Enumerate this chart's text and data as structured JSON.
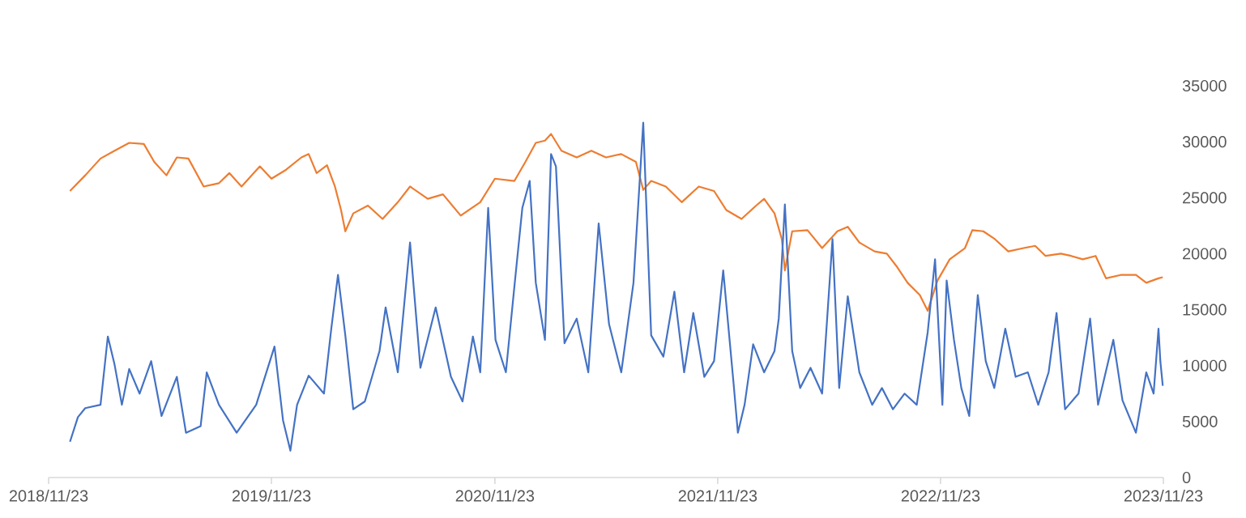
{
  "chart_data": {
    "type": "line",
    "xlim": [
      "2018-11-23",
      "2023-11-23"
    ],
    "xticks": [
      {
        "value": "2018-11-23",
        "label": "2018/11/23"
      },
      {
        "value": "2019-11-23",
        "label": "2019/11/23"
      },
      {
        "value": "2020-11-23",
        "label": "2020/11/23"
      },
      {
        "value": "2021-11-23",
        "label": "2021/11/23"
      },
      {
        "value": "2022-11-23",
        "label": "2022/11/23"
      },
      {
        "value": "2023-11-23",
        "label": "2023/11/23"
      }
    ],
    "ylim": [
      0,
      35000
    ],
    "yticks": [
      0,
      5000,
      10000,
      15000,
      20000,
      25000,
      30000,
      35000
    ],
    "series": [
      {
        "color": "#ed7d31",
        "x": [
          "2018-12-28",
          "2019-01-22",
          "2019-02-16",
          "2019-03-11",
          "2019-04-04",
          "2019-04-28",
          "2019-05-15",
          "2019-06-04",
          "2019-06-21",
          "2019-07-10",
          "2019-08-04",
          "2019-08-29",
          "2019-09-15",
          "2019-10-05",
          "2019-11-04",
          "2019-11-23",
          "2019-12-17",
          "2020-01-11",
          "2020-01-23",
          "2020-02-05",
          "2020-02-22",
          "2020-03-06",
          "2020-03-16",
          "2020-03-23",
          "2020-04-05",
          "2020-04-29",
          "2020-05-23",
          "2020-06-17",
          "2020-07-07",
          "2020-08-05",
          "2020-08-30",
          "2020-09-28",
          "2020-10-30",
          "2020-11-23",
          "2020-12-25",
          "2021-01-12",
          "2021-01-29",
          "2021-02-13",
          "2021-02-23",
          "2021-03-12",
          "2021-04-06",
          "2021-04-30",
          "2021-05-24",
          "2021-06-18",
          "2021-07-12",
          "2021-07-24",
          "2021-08-06",
          "2021-08-30",
          "2021-09-25",
          "2021-10-23",
          "2021-11-17",
          "2021-12-07",
          "2022-01-01",
          "2022-01-25",
          "2022-02-07",
          "2022-02-24",
          "2022-03-08",
          "2022-03-13",
          "2022-03-25",
          "2022-04-19",
          "2022-05-13",
          "2022-06-07",
          "2022-06-24",
          "2022-07-13",
          "2022-08-07",
          "2022-08-27",
          "2022-09-13",
          "2022-09-30",
          "2022-10-20",
          "2022-11-02",
          "2022-11-18",
          "2022-12-08",
          "2023-01-02",
          "2023-01-14",
          "2023-02-01",
          "2023-02-20",
          "2023-03-14",
          "2023-04-08",
          "2023-04-27",
          "2023-05-14",
          "2023-06-08",
          "2023-06-25",
          "2023-07-14",
          "2023-08-04",
          "2023-08-21",
          "2023-09-14",
          "2023-10-09",
          "2023-10-26",
          "2023-11-15",
          "2023-11-22"
        ],
        "values": [
          25600,
          27000,
          28500,
          29200,
          29900,
          29800,
          28200,
          27000,
          28600,
          28500,
          26000,
          26300,
          27200,
          26000,
          27800,
          26700,
          27500,
          28600,
          28900,
          27200,
          27900,
          26000,
          23900,
          22000,
          23600,
          24300,
          23100,
          24600,
          26000,
          24900,
          25300,
          23400,
          24600,
          26700,
          26500,
          28200,
          29900,
          30100,
          30700,
          29200,
          28600,
          29200,
          28600,
          28900,
          28200,
          25700,
          26500,
          26000,
          24600,
          26000,
          25600,
          23900,
          23100,
          24300,
          24900,
          23600,
          21300,
          18500,
          22000,
          22100,
          20500,
          22000,
          22400,
          21000,
          20200,
          20000,
          18800,
          17400,
          16300,
          14900,
          17600,
          19500,
          20500,
          22100,
          22000,
          21300,
          20200,
          20500,
          20700,
          19800,
          20000,
          19800,
          19500,
          19800,
          17800,
          18100,
          18100,
          17400,
          17800,
          17900
        ]
      },
      {
        "color": "#4472c4",
        "x": [
          "2018-12-28",
          "2019-01-10",
          "2019-01-22",
          "2019-02-16",
          "2019-02-28",
          "2019-03-11",
          "2019-03-23",
          "2019-04-04",
          "2019-04-21",
          "2019-05-10",
          "2019-05-27",
          "2019-06-21",
          "2019-07-06",
          "2019-07-30",
          "2019-08-09",
          "2019-08-29",
          "2019-09-27",
          "2019-10-29",
          "2019-11-28",
          "2019-12-12",
          "2019-12-24",
          "2020-01-04",
          "2020-01-23",
          "2020-02-17",
          "2020-02-29",
          "2020-03-11",
          "2020-03-23",
          "2020-04-05",
          "2020-04-24",
          "2020-05-18",
          "2020-05-28",
          "2020-06-17",
          "2020-07-07",
          "2020-07-24",
          "2020-08-18",
          "2020-09-12",
          "2020-10-01",
          "2020-10-18",
          "2020-10-30",
          "2020-11-12",
          "2020-11-24",
          "2020-12-11",
          "2020-12-25",
          "2021-01-07",
          "2021-01-19",
          "2021-01-29",
          "2021-02-13",
          "2021-02-23",
          "2021-03-03",
          "2021-03-17",
          "2021-04-06",
          "2021-04-25",
          "2021-05-12",
          "2021-05-29",
          "2021-06-18",
          "2021-07-08",
          "2021-07-24",
          "2021-08-06",
          "2021-08-26",
          "2021-09-13",
          "2021-09-29",
          "2021-10-14",
          "2021-11-01",
          "2021-11-17",
          "2021-12-02",
          "2021-12-19",
          "2021-12-26",
          "2022-01-06",
          "2022-01-20",
          "2022-02-07",
          "2022-02-24",
          "2022-03-03",
          "2022-03-13",
          "2022-03-25",
          "2022-04-07",
          "2022-04-24",
          "2022-05-13",
          "2022-05-30",
          "2022-06-10",
          "2022-06-24",
          "2022-07-13",
          "2022-08-03",
          "2022-08-19",
          "2022-09-06",
          "2022-09-25",
          "2022-10-15",
          "2022-11-02",
          "2022-11-14",
          "2022-11-26",
          "2022-12-03",
          "2022-12-15",
          "2022-12-27",
          "2023-01-09",
          "2023-01-23",
          "2023-02-05",
          "2023-02-19",
          "2023-03-09",
          "2023-03-26",
          "2023-04-15",
          "2023-05-02",
          "2023-05-19",
          "2023-06-01",
          "2023-06-15",
          "2023-07-07",
          "2023-07-26",
          "2023-08-08",
          "2023-09-02",
          "2023-09-17",
          "2023-10-09",
          "2023-10-26",
          "2023-11-07",
          "2023-11-15",
          "2023-11-18",
          "2023-11-22"
        ],
        "values": [
          3200,
          5400,
          6200,
          6500,
          12600,
          10100,
          6500,
          9700,
          7500,
          10400,
          5500,
          9000,
          4000,
          4600,
          9400,
          6500,
          4000,
          6500,
          11700,
          5100,
          2400,
          6500,
          9100,
          7500,
          13300,
          18100,
          12700,
          6100,
          6800,
          11300,
          15200,
          9400,
          21000,
          9800,
          15200,
          9000,
          6800,
          12600,
          9400,
          24100,
          12300,
          9400,
          17100,
          24100,
          26500,
          17400,
          12300,
          28900,
          27800,
          12000,
          14200,
          9400,
          22700,
          13700,
          9400,
          17400,
          31700,
          12700,
          10800,
          16600,
          9400,
          14700,
          9000,
          10400,
          18500,
          8400,
          4000,
          6500,
          11900,
          9400,
          11300,
          14200,
          24400,
          11300,
          8000,
          9800,
          7500,
          21300,
          8000,
          16200,
          9400,
          6500,
          8000,
          6100,
          7500,
          6500,
          13000,
          19500,
          6500,
          17600,
          12300,
          8000,
          5500,
          16300,
          10400,
          8000,
          13300,
          9000,
          9400,
          6500,
          9400,
          14700,
          6100,
          7500,
          14200,
          6500,
          12300,
          6900,
          4000,
          9400,
          7500,
          13300,
          10400,
          8200
        ]
      }
    ]
  }
}
